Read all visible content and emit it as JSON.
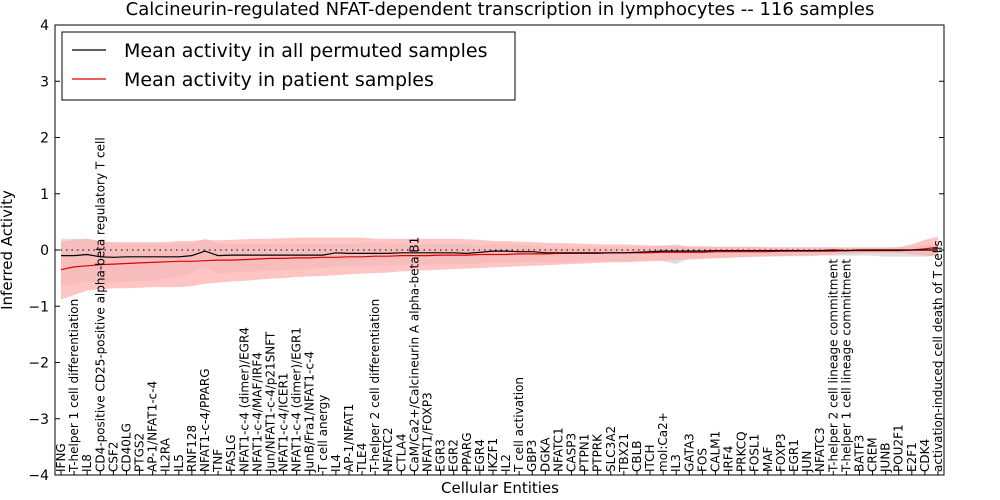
{
  "chart_data": {
    "type": "line",
    "title": "Calcineurin-regulated NFAT-dependent transcription in lymphocytes -- 116 samples",
    "xlabel": "Cellular Entities",
    "ylabel": "Inferred Activity",
    "ylim": [
      -4,
      4
    ],
    "yticks": [
      -4,
      -3,
      -2,
      -1,
      0,
      1,
      2,
      3,
      4
    ],
    "zero_line": "dotted",
    "legend_position": "top-left",
    "categories": [
      "IFNG",
      "T-helper 1 cell differentiation",
      "IL8",
      "CD4-positive CD25-positive alpha-beta regulatory T cell",
      "CSF2",
      "CD40LG",
      "PTGS2",
      "AP-1/NFAT1-c-4",
      "IL2RA",
      "IL5",
      "RNF128",
      "NFAT1-c-4/PPARG",
      "TNF",
      "FASLG",
      "NFAT1-c-4 (dimer)/EGR4",
      "NFAT1-c-4/MAF/IRF4",
      "Jun/NFAT1-c-4/p21SNFT",
      "NFAT1-c-4/ICER1",
      "NFAT1-c-4 (dimer)/EGR1",
      "JunB/Fra1/NFAT1-c-4",
      "T cell anergy",
      "IL4",
      "AP-1/NFAT1",
      "TLE4",
      "T-helper 2 cell differentiation",
      "NFATC2",
      "CTLA4",
      "CaM/Ca2+/Calcineurin A alpha-beta B1",
      "NFAT1/FOXP3",
      "EGR3",
      "EGR2",
      "PPARG",
      "EGR4",
      "IKZF1",
      "IL2",
      "T cell activation",
      "GBP3",
      "DGKA",
      "NFATC1",
      "CASP3",
      "PTPN1",
      "PTPRK",
      "SLC3A2",
      "TBX21",
      "CBLB",
      "ITCH",
      "mol:Ca2+",
      "IL3",
      "GATA3",
      "FOS",
      "CALM1",
      "IRF4",
      "PRKCQ",
      "FOSL1",
      "MAF",
      "FOXP3",
      "EGR1",
      "JUN",
      "NFATC3",
      "T-helper 2 cell lineage commitment",
      "T-helper 1 cell lineage commitment",
      "BATF3",
      "CREM",
      "JUNB",
      "POU2F1",
      "E2F1",
      "CDK4",
      "activation-induced cell death of T cells"
    ],
    "series": [
      {
        "name": "Mean activity in all permuted samples",
        "color": "#000000",
        "band_color": "#bbbbbb",
        "values": [
          -0.1,
          -0.1,
          -0.08,
          -0.12,
          -0.13,
          -0.12,
          -0.12,
          -0.12,
          -0.12,
          -0.12,
          -0.1,
          -0.02,
          -0.1,
          -0.09,
          -0.09,
          -0.09,
          -0.09,
          -0.09,
          -0.09,
          -0.09,
          -0.09,
          -0.05,
          -0.06,
          -0.06,
          -0.06,
          -0.06,
          -0.05,
          -0.05,
          -0.05,
          -0.05,
          -0.05,
          -0.06,
          -0.04,
          -0.02,
          -0.02,
          -0.03,
          -0.03,
          -0.05,
          -0.05,
          -0.05,
          -0.05,
          -0.05,
          -0.05,
          -0.05,
          -0.04,
          -0.03,
          -0.02,
          -0.02,
          -0.02,
          -0.02,
          -0.01,
          -0.01,
          -0.01,
          -0.01,
          -0.01,
          -0.01,
          -0.01,
          -0.01,
          -0.01,
          0.0,
          -0.01,
          0.0,
          0.0,
          0.0,
          0.0,
          0.0,
          0.0,
          0.0
        ],
        "lower": [
          -0.65,
          -0.6,
          -0.55,
          -0.58,
          -0.58,
          -0.56,
          -0.55,
          -0.55,
          -0.5,
          -0.48,
          -0.4,
          -0.3,
          -0.42,
          -0.4,
          -0.38,
          -0.38,
          -0.37,
          -0.36,
          -0.35,
          -0.34,
          -0.32,
          -0.3,
          -0.3,
          -0.3,
          -0.28,
          -0.27,
          -0.27,
          -0.26,
          -0.26,
          -0.25,
          -0.25,
          -0.25,
          -0.24,
          -0.22,
          -0.22,
          -0.22,
          -0.21,
          -0.22,
          -0.22,
          -0.22,
          -0.21,
          -0.2,
          -0.2,
          -0.2,
          -0.19,
          -0.18,
          -0.2,
          -0.25,
          -0.15,
          -0.14,
          -0.13,
          -0.13,
          -0.12,
          -0.12,
          -0.12,
          -0.11,
          -0.11,
          -0.11,
          -0.1,
          -0.1,
          -0.1,
          -0.1,
          -0.1,
          -0.12,
          -0.12,
          -0.12,
          -0.12,
          -0.1
        ],
        "upper": [
          0.2,
          0.2,
          0.2,
          0.15,
          0.12,
          0.1,
          0.1,
          0.1,
          0.1,
          0.12,
          0.12,
          0.2,
          0.12,
          0.1,
          0.1,
          0.1,
          0.1,
          0.12,
          0.1,
          0.1,
          0.1,
          0.1,
          0.1,
          0.12,
          0.12,
          0.12,
          0.1,
          0.1,
          0.1,
          0.1,
          0.1,
          0.1,
          0.08,
          0.1,
          0.1,
          0.1,
          0.08,
          0.05,
          0.05,
          0.05,
          0.05,
          0.05,
          0.05,
          0.05,
          0.05,
          0.06,
          0.08,
          0.1,
          0.05,
          0.05,
          0.05,
          0.05,
          0.05,
          0.05,
          0.05,
          0.05,
          0.05,
          0.05,
          0.05,
          0.05,
          0.05,
          0.05,
          0.05,
          0.05,
          0.05,
          0.06,
          0.08,
          0.1
        ]
      },
      {
        "name": "Mean activity in patient samples",
        "color": "#dd0000",
        "band_color": "#ffb0b0",
        "values": [
          -0.35,
          -0.3,
          -0.28,
          -0.26,
          -0.25,
          -0.24,
          -0.23,
          -0.22,
          -0.21,
          -0.2,
          -0.2,
          -0.19,
          -0.18,
          -0.18,
          -0.17,
          -0.16,
          -0.15,
          -0.15,
          -0.14,
          -0.14,
          -0.13,
          -0.13,
          -0.12,
          -0.12,
          -0.11,
          -0.11,
          -0.1,
          -0.1,
          -0.1,
          -0.09,
          -0.09,
          -0.09,
          -0.08,
          -0.08,
          -0.08,
          -0.07,
          -0.07,
          -0.07,
          -0.06,
          -0.06,
          -0.06,
          -0.06,
          -0.05,
          -0.05,
          -0.05,
          -0.05,
          -0.04,
          -0.04,
          -0.04,
          -0.04,
          -0.03,
          -0.03,
          -0.03,
          -0.03,
          -0.03,
          -0.02,
          -0.02,
          -0.02,
          -0.02,
          -0.02,
          -0.01,
          -0.01,
          -0.01,
          -0.01,
          -0.01,
          0.0,
          0.02,
          0.05
        ],
        "lower": [
          -0.88,
          -0.8,
          -0.72,
          -0.7,
          -0.68,
          -0.68,
          -0.67,
          -0.66,
          -0.66,
          -0.66,
          -0.64,
          -0.6,
          -0.58,
          -0.56,
          -0.55,
          -0.53,
          -0.51,
          -0.5,
          -0.48,
          -0.47,
          -0.46,
          -0.45,
          -0.43,
          -0.42,
          -0.41,
          -0.4,
          -0.38,
          -0.37,
          -0.36,
          -0.35,
          -0.34,
          -0.33,
          -0.32,
          -0.31,
          -0.3,
          -0.29,
          -0.28,
          -0.27,
          -0.26,
          -0.25,
          -0.24,
          -0.23,
          -0.22,
          -0.22,
          -0.21,
          -0.2,
          -0.19,
          -0.18,
          -0.17,
          -0.16,
          -0.15,
          -0.14,
          -0.13,
          -0.12,
          -0.11,
          -0.11,
          -0.1,
          -0.1,
          -0.09,
          -0.08,
          -0.07,
          -0.06,
          -0.05,
          -0.05,
          -0.05,
          -0.08,
          -0.1,
          -0.12
        ],
        "upper": [
          0.15,
          0.18,
          0.2,
          0.16,
          0.14,
          0.14,
          0.14,
          0.14,
          0.14,
          0.16,
          0.16,
          0.18,
          0.17,
          0.18,
          0.19,
          0.2,
          0.2,
          0.21,
          0.22,
          0.22,
          0.22,
          0.22,
          0.22,
          0.22,
          0.2,
          0.2,
          0.2,
          0.2,
          0.2,
          0.2,
          0.2,
          0.19,
          0.18,
          0.16,
          0.16,
          0.15,
          0.14,
          0.13,
          0.12,
          0.12,
          0.11,
          0.1,
          0.1,
          0.1,
          0.09,
          0.08,
          0.08,
          0.08,
          0.07,
          0.07,
          0.06,
          0.06,
          0.06,
          0.06,
          0.05,
          0.05,
          0.05,
          0.05,
          0.05,
          0.05,
          0.04,
          0.04,
          0.04,
          0.04,
          0.05,
          0.1,
          0.18,
          0.24
        ]
      }
    ]
  }
}
